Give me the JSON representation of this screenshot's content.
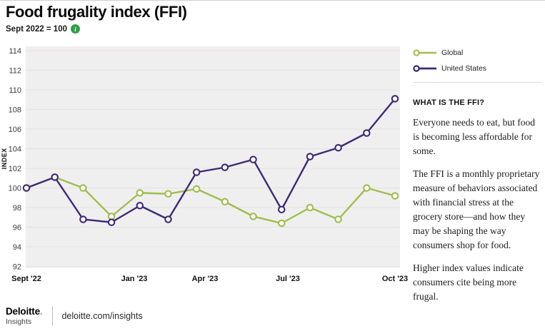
{
  "header": {
    "title": "Food frugality index (FFI)",
    "subtitle": "Sept 2022 = 100",
    "info_icon_glyph": "i"
  },
  "chart_data": {
    "type": "line",
    "title": "Food frugality index (FFI)",
    "index_note": "Sept 2022 = 100",
    "ylabel": "INDEX",
    "ylim": [
      92,
      114
    ],
    "ytick_step": 2,
    "grid": true,
    "plot_bg": "#f0efef",
    "grid_color": "#e3e1e1",
    "n_points": 14,
    "x_start": "Sept '22",
    "x_end": "Oct '23",
    "x_tick_labels": [
      "Sept '22",
      "Jan '23",
      "Apr '23",
      "Jul '23",
      "Oct '23"
    ],
    "x_tick_indices": [
      0,
      4,
      7,
      10,
      13
    ],
    "legend_position": "top-right",
    "series": [
      {
        "name": "Global",
        "color": "#9fbd4e",
        "values": [
          100,
          101.1,
          100,
          97.1,
          99.5,
          99.4,
          99.9,
          98.6,
          97.1,
          96.4,
          98.0,
          96.8,
          100.0,
          99.2
        ]
      },
      {
        "name": "United States",
        "color": "#3d2a75",
        "values": [
          100,
          101.1,
          96.8,
          96.5,
          98.2,
          96.8,
          101.6,
          102.1,
          102.9,
          97.8,
          103.2,
          104.1,
          105.6,
          109.1
        ]
      }
    ]
  },
  "sidebar": {
    "heading": "WHAT IS THE FFI?",
    "paragraphs": [
      "Everyone needs to eat, but food is becoming less affordable for some.",
      "The FFI is a monthly proprietary measure of behaviors associated with financial stress at the grocery store—and how they may be shaping the way consumers shop for food.",
      "Higher index values indicate consumers cite being more frugal."
    ]
  },
  "footer": {
    "brand": "Deloitte",
    "brand_dot": ".",
    "sub_brand": "Insights",
    "link": "deloitte.com/insights"
  }
}
